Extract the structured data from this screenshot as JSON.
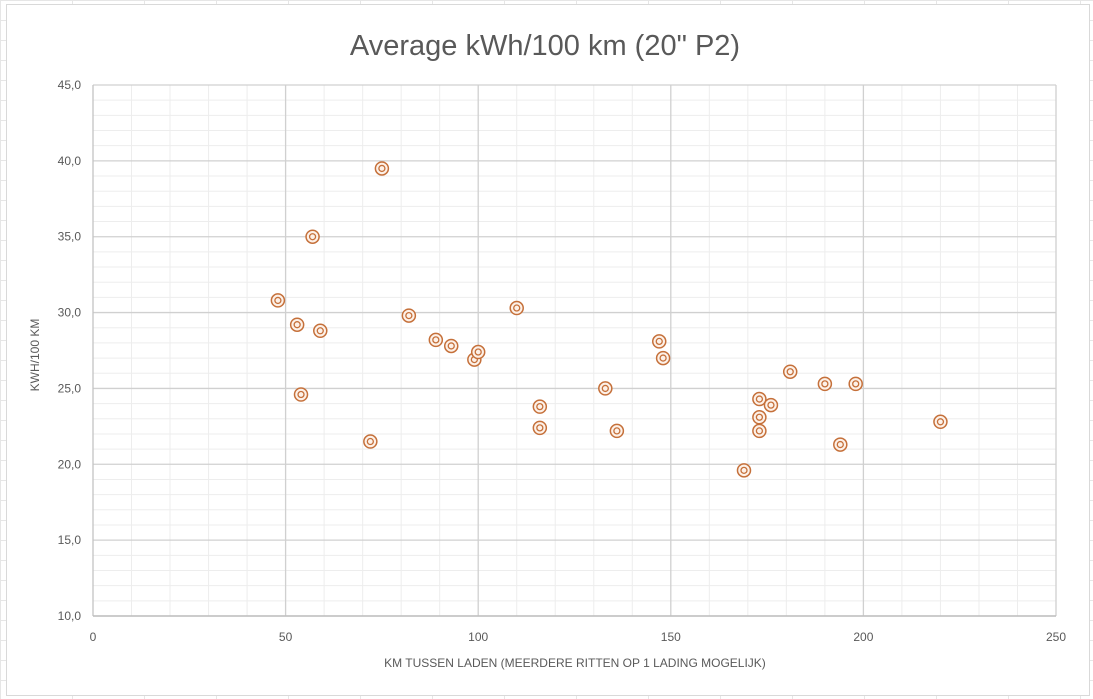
{
  "chart_data": {
    "type": "scatter",
    "title": "Average kWh/100 km (20\" P2)",
    "xlabel": "KM TUSSEN LADEN (MEERDERE RITTEN OP 1 LADING MOGELIJK)",
    "ylabel": "KWH/100 KM",
    "xlim": [
      0,
      250
    ],
    "ylim": [
      10,
      45
    ],
    "x_major_step": 50,
    "x_minor_step": 10,
    "y_major_step": 5,
    "y_minor_step": 1,
    "x_tick_labels": [
      "0",
      "50",
      "100",
      "150",
      "200",
      "250"
    ],
    "y_tick_labels": [
      "10,0",
      "15,0",
      "20,0",
      "25,0",
      "30,0",
      "35,0",
      "40,0",
      "45,0"
    ],
    "grid": true,
    "marker_color": "#c5703a",
    "points": [
      {
        "x": 48,
        "y": 30.8
      },
      {
        "x": 53,
        "y": 29.2
      },
      {
        "x": 54,
        "y": 24.6
      },
      {
        "x": 57,
        "y": 35.0
      },
      {
        "x": 59,
        "y": 28.8
      },
      {
        "x": 72,
        "y": 21.5
      },
      {
        "x": 75,
        "y": 39.5
      },
      {
        "x": 82,
        "y": 29.8
      },
      {
        "x": 89,
        "y": 28.2
      },
      {
        "x": 93,
        "y": 27.8
      },
      {
        "x": 99,
        "y": 26.9
      },
      {
        "x": 100,
        "y": 27.4
      },
      {
        "x": 110,
        "y": 30.3
      },
      {
        "x": 116,
        "y": 23.8
      },
      {
        "x": 116,
        "y": 22.4
      },
      {
        "x": 133,
        "y": 25.0
      },
      {
        "x": 136,
        "y": 22.2
      },
      {
        "x": 147,
        "y": 28.1
      },
      {
        "x": 148,
        "y": 27.0
      },
      {
        "x": 169,
        "y": 19.6
      },
      {
        "x": 173,
        "y": 24.3
      },
      {
        "x": 173,
        "y": 23.1
      },
      {
        "x": 173,
        "y": 22.2
      },
      {
        "x": 176,
        "y": 23.9
      },
      {
        "x": 181,
        "y": 26.1
      },
      {
        "x": 190,
        "y": 25.3
      },
      {
        "x": 194,
        "y": 21.3
      },
      {
        "x": 198,
        "y": 25.3
      },
      {
        "x": 220,
        "y": 22.8
      }
    ]
  }
}
